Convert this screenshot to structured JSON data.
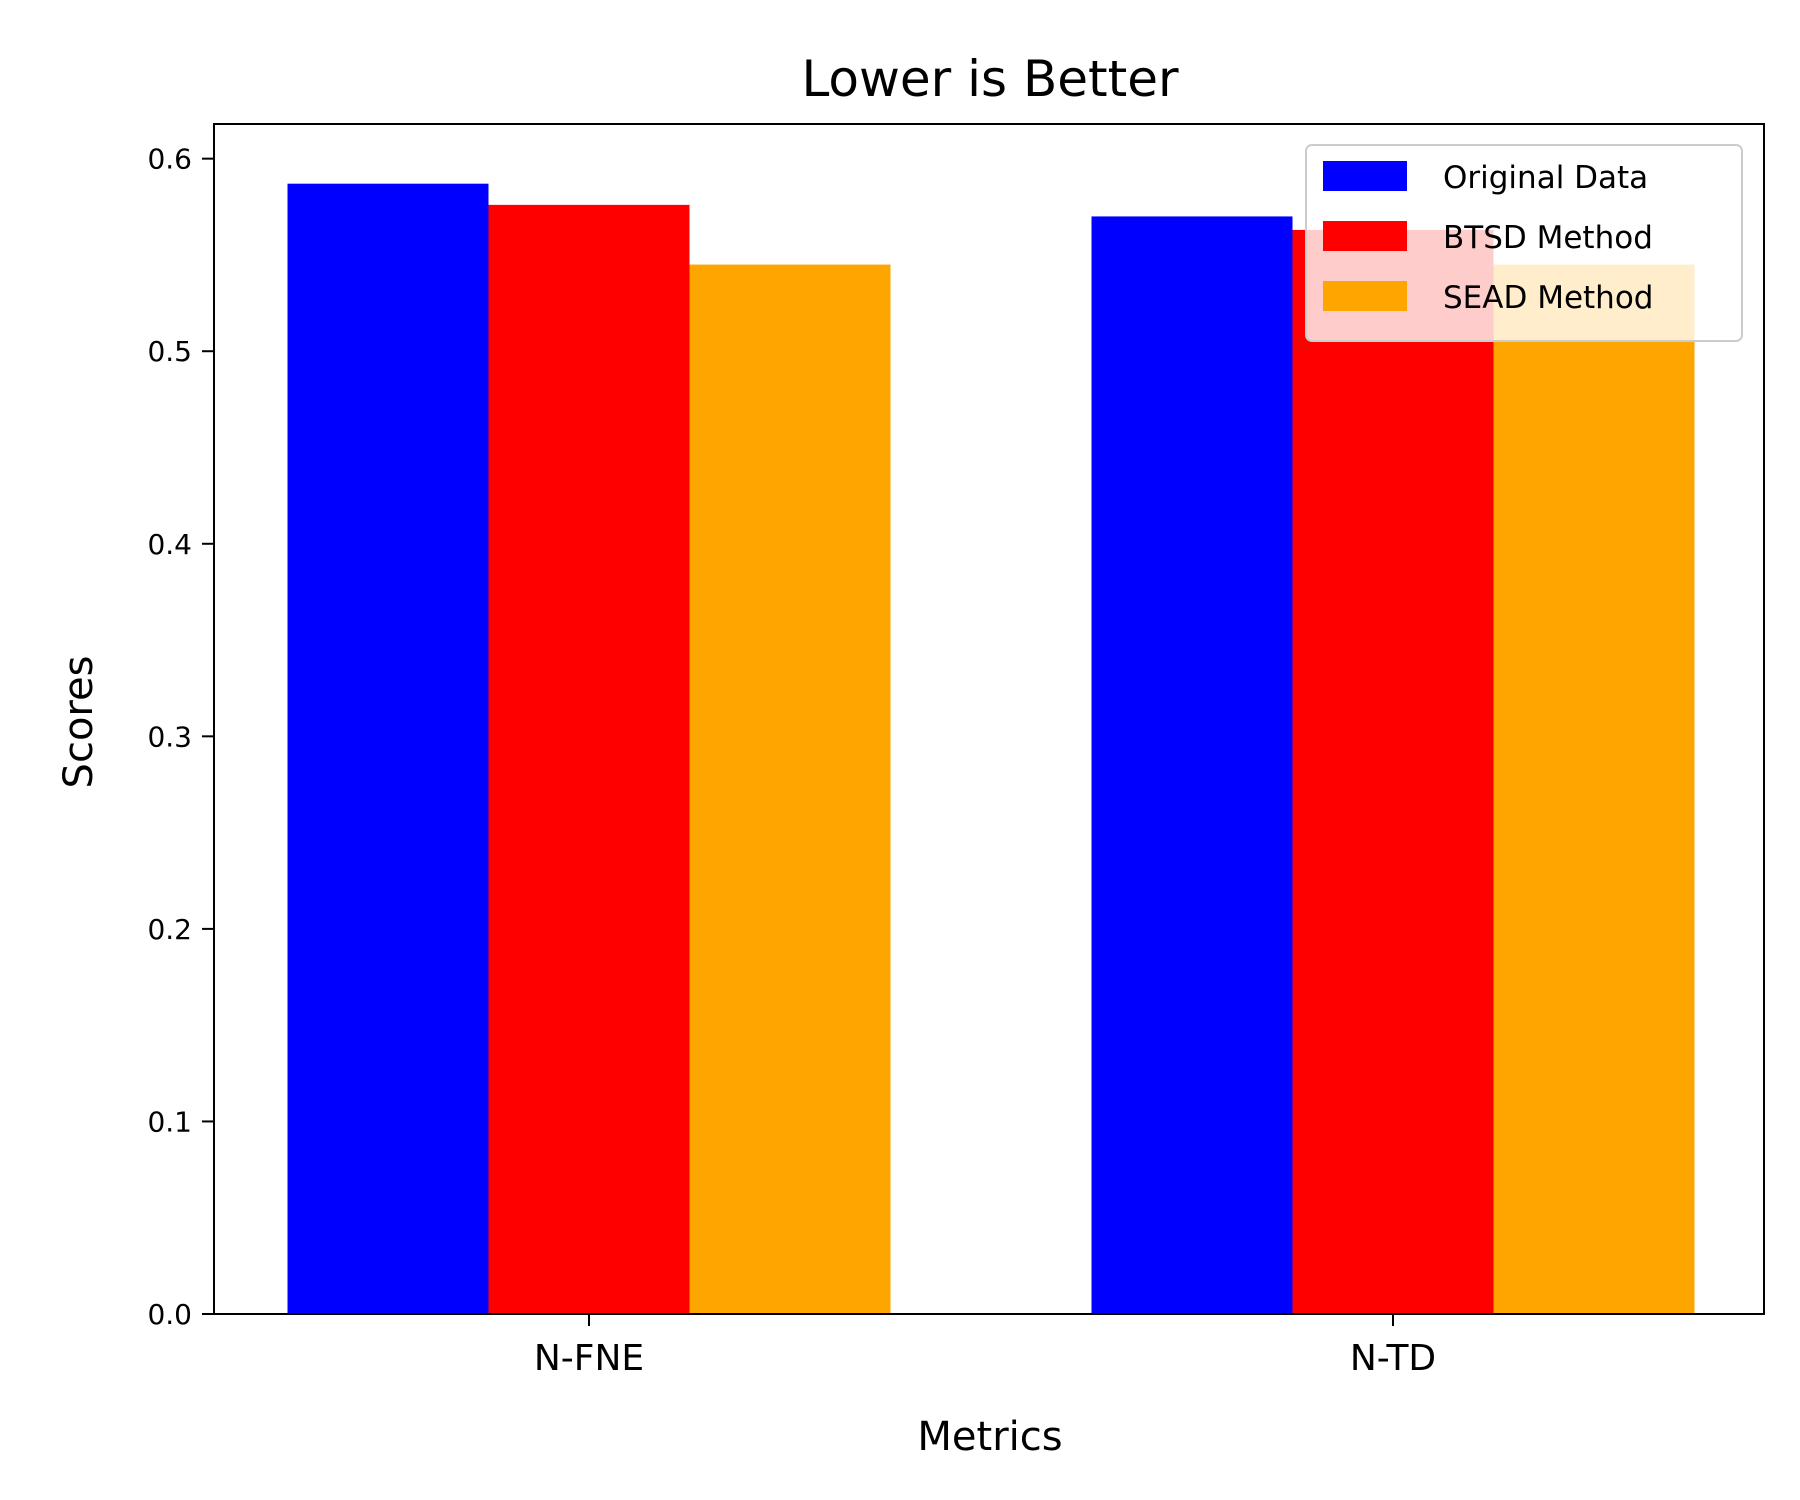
{
  "chart_data": {
    "type": "bar",
    "title": "Lower is Better",
    "xlabel": "Metrics",
    "ylabel": "Scores",
    "categories": [
      "N-FNE",
      "N-TD"
    ],
    "series": [
      {
        "name": "Original Data",
        "color": "#0000ff",
        "values": [
          0.587,
          0.57
        ]
      },
      {
        "name": "BTSD Method",
        "color": "#ff0000",
        "values": [
          0.576,
          0.563
        ]
      },
      {
        "name": "SEAD Method",
        "color": "#ffa500",
        "values": [
          0.545,
          0.545
        ]
      }
    ],
    "ylim": [
      0,
      0.618
    ],
    "yticks": [
      0.0,
      0.1,
      0.2,
      0.3,
      0.4,
      0.5,
      0.6
    ],
    "ytick_labels": [
      "0.0",
      "0.1",
      "0.2",
      "0.3",
      "0.4",
      "0.5",
      "0.6"
    ],
    "grid": false,
    "legend_position": "top-right"
  }
}
